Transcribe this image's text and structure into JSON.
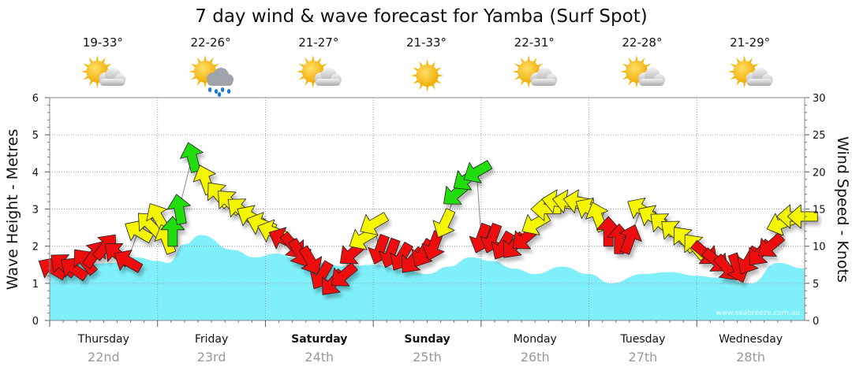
{
  "chart_data": {
    "type": "area",
    "title": "7 day wind & wave forecast for Yamba (Surf Spot)",
    "ylabel_left": "Wave Height - Metres",
    "ylabel_right": "Wind Speed - Knots",
    "ylim_left": [
      0,
      6
    ],
    "ylim_right": [
      0,
      30
    ],
    "yticks_left": [
      "0",
      "1",
      "2",
      "3",
      "4",
      "5",
      "6"
    ],
    "yticks_right": [
      "0",
      "5",
      "10",
      "15",
      "20",
      "25",
      "30"
    ],
    "grid": true,
    "credit": "www.seabreeze.com.au",
    "days": [
      {
        "name": "Thursday",
        "date": "22nd",
        "temp": "19-33°",
        "weather": "partly-cloudy",
        "bold": false
      },
      {
        "name": "Friday",
        "date": "23rd",
        "temp": "22-26°",
        "weather": "showers",
        "bold": false
      },
      {
        "name": "Saturday",
        "date": "24th",
        "temp": "21-27°",
        "weather": "partly-cloudy",
        "bold": true
      },
      {
        "name": "Sunday",
        "date": "25th",
        "temp": "21-33°",
        "weather": "sunny",
        "bold": true
      },
      {
        "name": "Monday",
        "date": "26th",
        "temp": "22-31°",
        "weather": "partly-cloudy",
        "bold": false
      },
      {
        "name": "Tuesday",
        "date": "27th",
        "temp": "22-28°",
        "weather": "partly-cloudy",
        "bold": false
      },
      {
        "name": "Wednesday",
        "date": "28th",
        "temp": "21-29°",
        "weather": "partly-cloudy",
        "bold": false
      }
    ],
    "wave_series": {
      "name": "Wave Height",
      "x_days": [
        0,
        0.3,
        0.6,
        0.8,
        1.0,
        1.1,
        1.25,
        1.4,
        1.7,
        1.9,
        2.1,
        2.3,
        2.5,
        2.75,
        3.0,
        3.3,
        3.5,
        3.7,
        3.9,
        4.1,
        4.3,
        4.5,
        4.75,
        5.0,
        5.2,
        5.5,
        5.75,
        6.0,
        6.2,
        6.5,
        6.75,
        7.0
      ],
      "values": [
        1.35,
        1.5,
        1.55,
        1.7,
        1.6,
        1.55,
        2.05,
        2.3,
        1.9,
        1.7,
        1.8,
        1.65,
        1.55,
        1.45,
        1.5,
        1.35,
        1.25,
        1.45,
        1.7,
        1.6,
        1.4,
        1.25,
        1.45,
        1.25,
        1.0,
        1.25,
        1.3,
        1.2,
        1.15,
        1.0,
        1.55,
        1.4
      ]
    },
    "wind_series": {
      "name": "Wind",
      "comment": "Each point: time in days from start of Thursday, speed in knots, direction the arrow points in degrees (0 = up/north, 90 = right/east), colour category",
      "x_days": [
        0.02,
        0.12,
        0.22,
        0.32,
        0.42,
        0.52,
        0.62,
        0.72,
        0.82,
        0.92,
        1.0,
        1.08,
        1.14,
        1.2,
        1.32,
        1.44,
        1.56,
        1.66,
        1.76,
        1.86,
        1.96,
        2.06,
        2.16,
        2.26,
        2.32,
        2.42,
        2.52,
        2.62,
        2.72,
        2.8,
        2.9,
        3.0,
        3.06,
        3.16,
        3.26,
        3.36,
        3.46,
        3.56,
        3.66,
        3.76,
        3.86,
        3.96,
        4.0,
        4.1,
        4.2,
        4.3,
        4.4,
        4.5,
        4.6,
        4.7,
        4.8,
        4.9,
        5.0,
        5.08,
        5.18,
        5.28,
        5.38,
        5.48,
        5.58,
        5.68,
        5.78,
        5.88,
        5.98,
        6.08,
        6.18,
        6.28,
        6.38,
        6.48,
        6.58,
        6.68,
        6.78,
        6.88,
        6.98
      ],
      "speed_kn": [
        7,
        7.5,
        7,
        8,
        9,
        10,
        9,
        8,
        12,
        13,
        14,
        11,
        12,
        15,
        22,
        19,
        17,
        16,
        15,
        14,
        13,
        12,
        11,
        10,
        9,
        8,
        6,
        5,
        6,
        9,
        11,
        13,
        9.5,
        9,
        8.5,
        8,
        9,
        10,
        13,
        17,
        19,
        20,
        11,
        11,
        10,
        10,
        11,
        13,
        15,
        16,
        16,
        16,
        15,
        14,
        12,
        11,
        11,
        15,
        14,
        13,
        12,
        11,
        10,
        9,
        8,
        7,
        7,
        8,
        9,
        10,
        13,
        14,
        14
      ],
      "dir_deg": [
        300,
        310,
        305,
        320,
        35,
        40,
        310,
        300,
        300,
        315,
        330,
        340,
        0,
        350,
        345,
        340,
        320,
        315,
        310,
        300,
        290,
        290,
        295,
        140,
        150,
        150,
        210,
        220,
        230,
        230,
        240,
        240,
        200,
        200,
        210,
        220,
        210,
        200,
        205,
        230,
        235,
        240,
        200,
        200,
        210,
        220,
        230,
        240,
        270,
        280,
        280,
        280,
        300,
        340,
        0,
        0,
        20,
        300,
        300,
        310,
        310,
        320,
        320,
        130,
        130,
        140,
        160,
        210,
        220,
        230,
        250,
        270,
        270
      ],
      "category": [
        "red",
        "red",
        "red",
        "red",
        "red",
        "red",
        "red",
        "red",
        "yellow",
        "yellow",
        "yellow",
        "yellow",
        "green",
        "green",
        "green",
        "yellow",
        "yellow",
        "yellow",
        "yellow",
        "yellow",
        "yellow",
        "yellow",
        "red",
        "red",
        "red",
        "red",
        "red",
        "red",
        "red",
        "red",
        "yellow",
        "yellow",
        "red",
        "red",
        "red",
        "red",
        "red",
        "red",
        "yellow",
        "green",
        "green",
        "green",
        "red",
        "red",
        "red",
        "red",
        "red",
        "yellow",
        "yellow",
        "yellow",
        "yellow",
        "yellow",
        "yellow",
        "yellow",
        "red",
        "red",
        "red",
        "yellow",
        "yellow",
        "yellow",
        "yellow",
        "yellow",
        "yellow",
        "red",
        "red",
        "red",
        "red",
        "red",
        "red",
        "red",
        "yellow",
        "yellow",
        "yellow"
      ]
    },
    "colors": {
      "wave_fill": "#7ff0fb",
      "wind_red": "#ee1111",
      "wind_yellow": "#f5f500",
      "wind_green": "#22dd11",
      "grid": "#999999"
    }
  }
}
